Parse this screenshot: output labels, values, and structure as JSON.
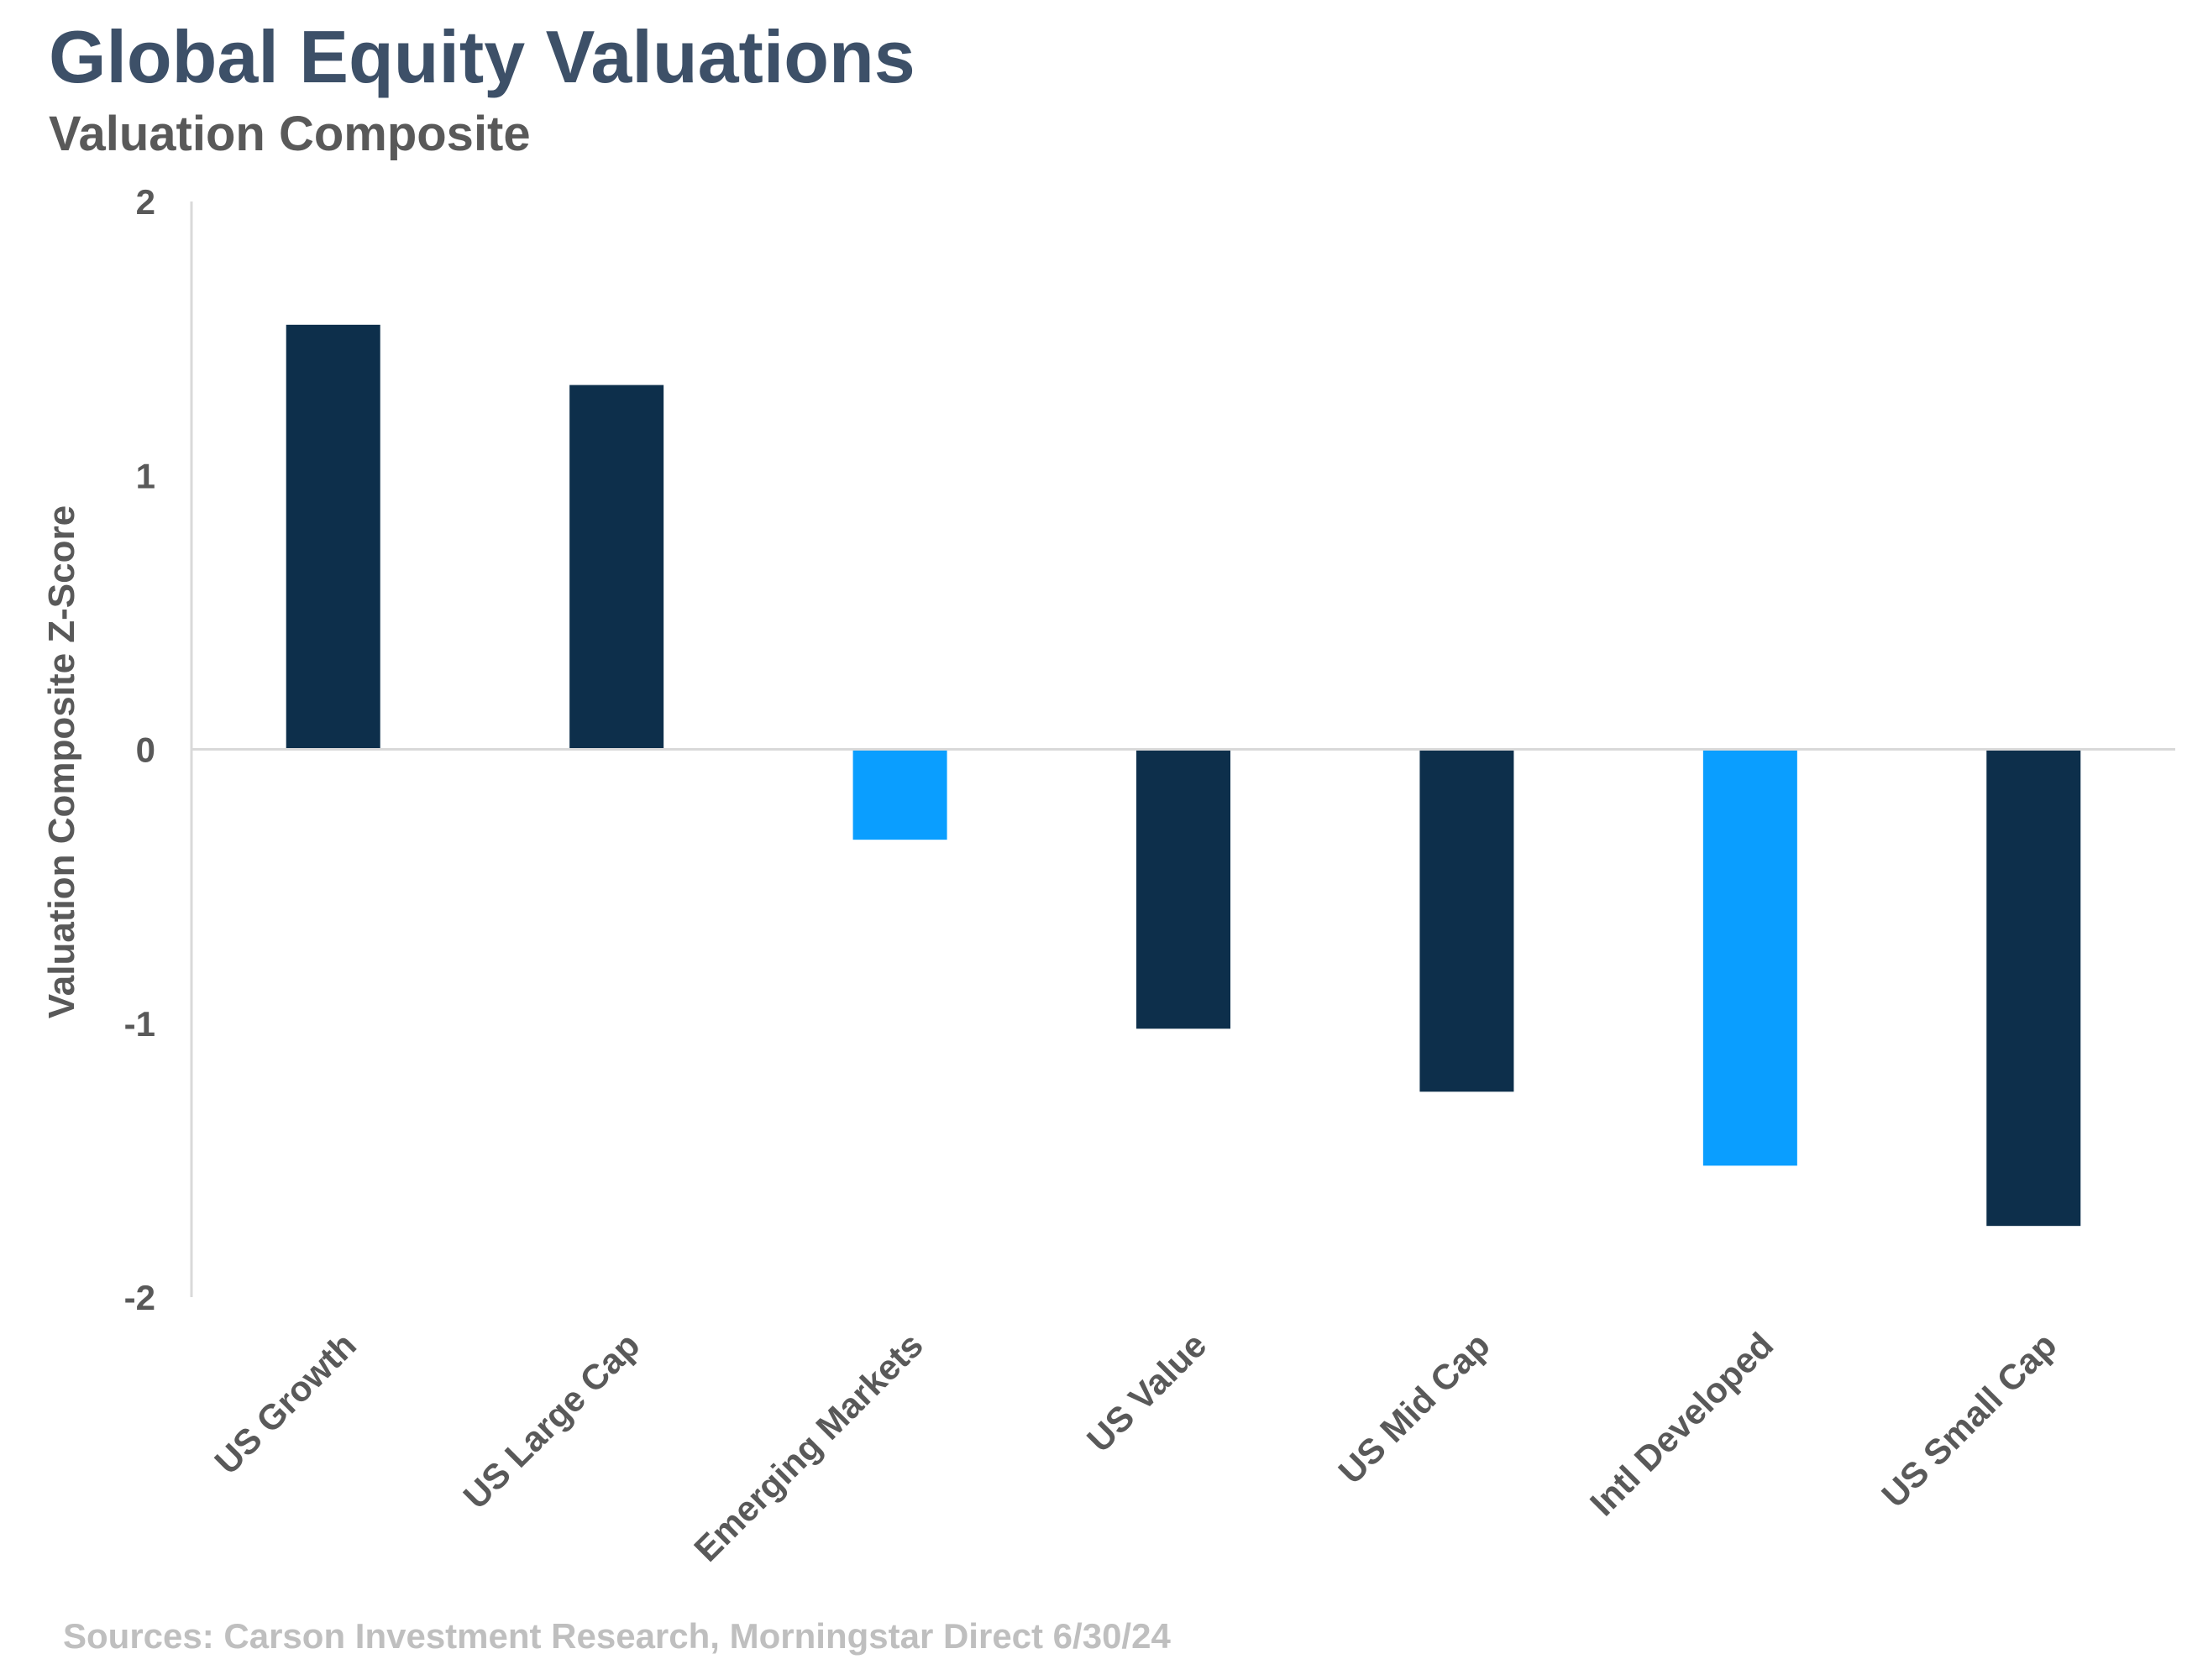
{
  "chart_data": {
    "type": "bar",
    "title": "Global Equity Valuations",
    "subtitle": "Valuation Composite",
    "xlabel": "",
    "ylabel": "Valuation Composite Z-Score",
    "ylim": [
      -2,
      2
    ],
    "yticks": [
      2,
      1,
      0,
      -1,
      -2
    ],
    "grid": false,
    "legend": "none",
    "categories": [
      "US Growth",
      "US Large Cap",
      "Emerging Markets",
      "US Value",
      "US Mid Cap",
      "Intl Developed",
      "US Small Cap"
    ],
    "values": [
      1.55,
      1.33,
      -0.33,
      -1.02,
      -1.25,
      -1.52,
      -1.74
    ],
    "bar_colors": [
      "#0d2f4b",
      "#0d2f4b",
      "#0a9eff",
      "#0d2f4b",
      "#0d2f4b",
      "#0a9eff",
      "#0d2f4b"
    ]
  },
  "source": "Sources: Carson Investment Research, Morningstar Direct 6/30/24"
}
